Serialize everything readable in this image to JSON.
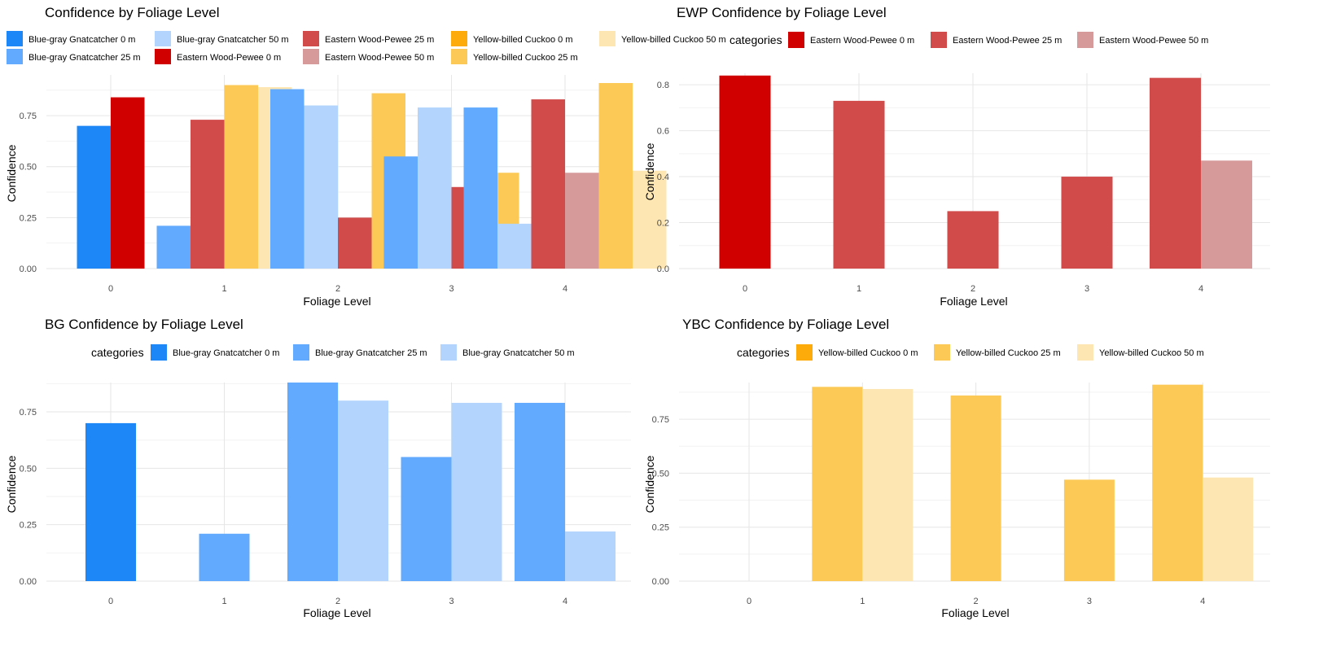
{
  "colors": {
    "bg0": "#1e87f7",
    "bg25": "#62aafd",
    "bg50": "#b3d5fd",
    "ewp0": "#d10000",
    "ewp25": "#d14b4b",
    "ewp50": "#d69a9a",
    "ybc0": "#fdaa0b",
    "ybc25": "#fcc956",
    "ybc50": "#fee6b3"
  },
  "chart_data": [
    {
      "type": "bar",
      "title": "Confidence by Foliage Level",
      "xlabel": "Foliage Level",
      "ylabel": "Confidence",
      "categories": [
        "0",
        "1",
        "2",
        "3",
        "4"
      ],
      "ylim": [
        0,
        0.95
      ],
      "yticks": [
        "0.00",
        "0.25",
        "0.50",
        "0.75"
      ],
      "legend_title": "",
      "legend_position": "top",
      "grid": true,
      "series": [
        {
          "name": "Blue-gray Gnatcatcher 0 m",
          "color": "#1e87f7",
          "values": [
            0.7,
            null,
            null,
            null,
            null
          ]
        },
        {
          "name": "Blue-gray Gnatcatcher 25 m",
          "color": "#62aafd",
          "values": [
            null,
            0.21,
            0.88,
            0.55,
            0.79
          ]
        },
        {
          "name": "Blue-gray Gnatcatcher 50 m",
          "color": "#b3d5fd",
          "values": [
            null,
            null,
            0.8,
            0.79,
            0.22
          ]
        },
        {
          "name": "Eastern Wood-Pewee 0 m",
          "color": "#d10000",
          "values": [
            0.84,
            null,
            null,
            null,
            null
          ]
        },
        {
          "name": "Eastern Wood-Pewee 25 m",
          "color": "#d14b4b",
          "values": [
            null,
            0.73,
            0.25,
            0.4,
            0.83
          ]
        },
        {
          "name": "Eastern Wood-Pewee 50 m",
          "color": "#d69a9a",
          "values": [
            null,
            null,
            null,
            null,
            0.47
          ]
        },
        {
          "name": "Yellow-billed Cuckoo 0 m",
          "color": "#fdaa0b",
          "values": [
            null,
            null,
            null,
            null,
            null
          ]
        },
        {
          "name": "Yellow-billed Cuckoo 25 m",
          "color": "#fcc956",
          "values": [
            null,
            0.9,
            0.86,
            0.47,
            0.91
          ]
        },
        {
          "name": "Yellow-billed Cuckoo 50 m",
          "color": "#fee6b3",
          "values": [
            null,
            0.89,
            null,
            null,
            0.48
          ]
        }
      ]
    },
    {
      "type": "bar",
      "title": "EWP Confidence by Foliage Level",
      "xlabel": "Foliage Level",
      "ylabel": "Confidence",
      "categories": [
        "0",
        "1",
        "2",
        "3",
        "4"
      ],
      "ylim": [
        0,
        0.85
      ],
      "yticks": [
        "0.0",
        "0.2",
        "0.4",
        "0.6",
        "0.8"
      ],
      "legend_title": "categories",
      "legend_position": "top",
      "grid": true,
      "series": [
        {
          "name": "Eastern Wood-Pewee 0 m",
          "color": "#d10000",
          "values": [
            0.84,
            null,
            null,
            null,
            null
          ]
        },
        {
          "name": "Eastern Wood-Pewee 25 m",
          "color": "#d14b4b",
          "values": [
            null,
            0.73,
            0.25,
            0.4,
            0.83
          ]
        },
        {
          "name": "Eastern Wood-Pewee 50 m",
          "color": "#d69a9a",
          "values": [
            null,
            null,
            null,
            null,
            0.47
          ]
        }
      ]
    },
    {
      "type": "bar",
      "title": "BG Confidence by Foliage Level",
      "xlabel": "Foliage Level",
      "ylabel": "Confidence",
      "categories": [
        "0",
        "1",
        "2",
        "3",
        "4"
      ],
      "ylim": [
        0,
        0.88
      ],
      "yticks": [
        "0.00",
        "0.25",
        "0.50",
        "0.75"
      ],
      "legend_title": "categories",
      "legend_position": "top",
      "grid": true,
      "series": [
        {
          "name": "Blue-gray Gnatcatcher 0 m",
          "color": "#1e87f7",
          "values": [
            0.7,
            null,
            null,
            null,
            null
          ]
        },
        {
          "name": "Blue-gray Gnatcatcher 25 m",
          "color": "#62aafd",
          "values": [
            null,
            0.21,
            0.88,
            0.55,
            0.79
          ]
        },
        {
          "name": "Blue-gray Gnatcatcher 50 m",
          "color": "#b3d5fd",
          "values": [
            null,
            null,
            0.8,
            0.79,
            0.22
          ]
        }
      ]
    },
    {
      "type": "bar",
      "title": "YBC Confidence by Foliage Level",
      "xlabel": "Foliage Level",
      "ylabel": "Confidence",
      "categories": [
        "0",
        "1",
        "2",
        "3",
        "4"
      ],
      "ylim": [
        0,
        0.92
      ],
      "yticks": [
        "0.00",
        "0.25",
        "0.50",
        "0.75"
      ],
      "legend_title": "categories",
      "legend_position": "top",
      "grid": true,
      "series": [
        {
          "name": "Yellow-billed Cuckoo 0 m",
          "color": "#fdaa0b",
          "values": [
            null,
            null,
            null,
            null,
            null
          ]
        },
        {
          "name": "Yellow-billed Cuckoo 25 m",
          "color": "#fcc956",
          "values": [
            null,
            0.9,
            0.86,
            0.47,
            0.91
          ]
        },
        {
          "name": "Yellow-billed Cuckoo 50 m",
          "color": "#fee6b3",
          "values": [
            null,
            0.89,
            null,
            null,
            0.48
          ]
        }
      ]
    }
  ]
}
